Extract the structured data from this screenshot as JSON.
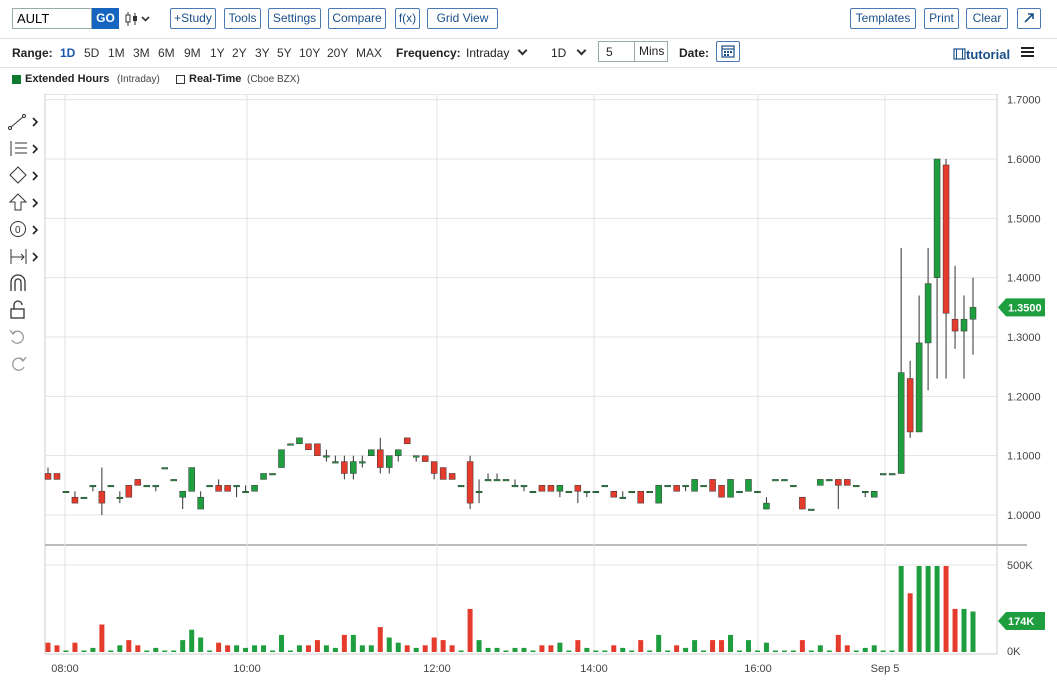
{
  "toolbar": {
    "symbol": "AULT",
    "go_label": "GO",
    "study_label": "+Study",
    "tools_label": "Tools",
    "settings_label": "Settings",
    "compare_label": "Compare",
    "fx_label": "f(x)",
    "grid_view_label": "Grid View",
    "templates_label": "Templates",
    "print_label": "Print",
    "clear_label": "Clear"
  },
  "range_bar": {
    "range_label": "Range:",
    "ranges": [
      "1D",
      "5D",
      "1M",
      "3M",
      "6M",
      "9M",
      "1Y",
      "2Y",
      "3Y",
      "5Y",
      "10Y",
      "20Y",
      "MAX"
    ],
    "active_range": "1D",
    "frequency_label": "Frequency:",
    "frequency_value": "Intraday",
    "period_value": "1D",
    "mins_value": "5",
    "mins_label": "Mins",
    "date_label": "Date:",
    "tutorial_label": "tutorial"
  },
  "legend": {
    "extended_label": "Extended Hours",
    "extended_sub": "(Intraday)",
    "realtime_label": "Real-Time",
    "realtime_sub": "(Cboe BZX)"
  },
  "colors": {
    "up": "#1e9e3e",
    "down": "#e53b2c",
    "accent": "#1565c0",
    "price_badge": "#1e9e3e"
  },
  "chart_data": {
    "type": "candlestick",
    "x_ticks": [
      "08:00",
      "10:00",
      "12:00",
      "14:00",
      "16:00",
      "Sep 5"
    ],
    "price_ticks": [
      "1.7000",
      "1.6000",
      "1.5000",
      "1.4000",
      "1.3000",
      "1.2000",
      "1.1000",
      "1.0000"
    ],
    "ylim": [
      0.97,
      1.7
    ],
    "volume_ticks": [
      "500K",
      "0K"
    ],
    "volume_max": 500000,
    "last_price": "1.3500",
    "last_volume": "174K",
    "candles": [
      {
        "o": 1.07,
        "h": 1.08,
        "l": 1.06,
        "c": 1.06
      },
      {
        "o": 1.07,
        "h": 1.07,
        "l": 1.06,
        "c": 1.06
      },
      {
        "o": 1.04,
        "h": 1.04,
        "l": 1.04,
        "c": 1.04
      },
      {
        "o": 1.03,
        "h": 1.04,
        "l": 1.02,
        "c": 1.02
      },
      {
        "o": 1.03,
        "h": 1.03,
        "l": 1.03,
        "c": 1.03
      },
      {
        "o": 1.05,
        "h": 1.05,
        "l": 1.04,
        "c": 1.05
      },
      {
        "o": 1.04,
        "h": 1.08,
        "l": 1.0,
        "c": 1.02
      },
      {
        "o": 1.05,
        "h": 1.05,
        "l": 1.05,
        "c": 1.05
      },
      {
        "o": 1.03,
        "h": 1.04,
        "l": 1.02,
        "c": 1.03
      },
      {
        "o": 1.05,
        "h": 1.05,
        "l": 1.03,
        "c": 1.03
      },
      {
        "o": 1.06,
        "h": 1.06,
        "l": 1.05,
        "c": 1.05
      },
      {
        "o": 1.05,
        "h": 1.05,
        "l": 1.05,
        "c": 1.05
      },
      {
        "o": 1.05,
        "h": 1.05,
        "l": 1.04,
        "c": 1.05
      },
      {
        "o": 1.08,
        "h": 1.08,
        "l": 1.08,
        "c": 1.08
      },
      {
        "o": 1.06,
        "h": 1.06,
        "l": 1.06,
        "c": 1.06
      },
      {
        "o": 1.03,
        "h": 1.04,
        "l": 1.01,
        "c": 1.04
      },
      {
        "o": 1.04,
        "h": 1.08,
        "l": 1.04,
        "c": 1.08
      },
      {
        "o": 1.01,
        "h": 1.04,
        "l": 1.01,
        "c": 1.03
      },
      {
        "o": 1.05,
        "h": 1.05,
        "l": 1.05,
        "c": 1.05
      },
      {
        "o": 1.05,
        "h": 1.06,
        "l": 1.04,
        "c": 1.04
      },
      {
        "o": 1.05,
        "h": 1.05,
        "l": 1.04,
        "c": 1.04
      },
      {
        "o": 1.05,
        "h": 1.05,
        "l": 1.03,
        "c": 1.05
      },
      {
        "o": 1.04,
        "h": 1.05,
        "l": 1.04,
        "c": 1.04
      },
      {
        "o": 1.04,
        "h": 1.05,
        "l": 1.04,
        "c": 1.05
      },
      {
        "o": 1.06,
        "h": 1.07,
        "l": 1.06,
        "c": 1.07
      },
      {
        "o": 1.07,
        "h": 1.07,
        "l": 1.07,
        "c": 1.07
      },
      {
        "o": 1.08,
        "h": 1.11,
        "l": 1.08,
        "c": 1.11
      },
      {
        "o": 1.12,
        "h": 1.12,
        "l": 1.12,
        "c": 1.12
      },
      {
        "o": 1.12,
        "h": 1.13,
        "l": 1.12,
        "c": 1.13
      },
      {
        "o": 1.12,
        "h": 1.12,
        "l": 1.11,
        "c": 1.11
      },
      {
        "o": 1.12,
        "h": 1.12,
        "l": 1.1,
        "c": 1.1
      },
      {
        "o": 1.1,
        "h": 1.11,
        "l": 1.09,
        "c": 1.1
      },
      {
        "o": 1.09,
        "h": 1.1,
        "l": 1.09,
        "c": 1.09
      },
      {
        "o": 1.09,
        "h": 1.1,
        "l": 1.06,
        "c": 1.07
      },
      {
        "o": 1.07,
        "h": 1.1,
        "l": 1.06,
        "c": 1.09
      },
      {
        "o": 1.09,
        "h": 1.1,
        "l": 1.08,
        "c": 1.09
      },
      {
        "o": 1.1,
        "h": 1.11,
        "l": 1.1,
        "c": 1.11
      },
      {
        "o": 1.11,
        "h": 1.13,
        "l": 1.07,
        "c": 1.08
      },
      {
        "o": 1.08,
        "h": 1.1,
        "l": 1.07,
        "c": 1.1
      },
      {
        "o": 1.1,
        "h": 1.11,
        "l": 1.09,
        "c": 1.11
      },
      {
        "o": 1.13,
        "h": 1.13,
        "l": 1.12,
        "c": 1.12
      },
      {
        "o": 1.1,
        "h": 1.1,
        "l": 1.09,
        "c": 1.1
      },
      {
        "o": 1.1,
        "h": 1.1,
        "l": 1.09,
        "c": 1.09
      },
      {
        "o": 1.09,
        "h": 1.09,
        "l": 1.06,
        "c": 1.07
      },
      {
        "o": 1.08,
        "h": 1.08,
        "l": 1.06,
        "c": 1.06
      },
      {
        "o": 1.07,
        "h": 1.07,
        "l": 1.06,
        "c": 1.06
      },
      {
        "o": 1.05,
        "h": 1.05,
        "l": 1.05,
        "c": 1.05
      },
      {
        "o": 1.09,
        "h": 1.1,
        "l": 1.01,
        "c": 1.02
      },
      {
        "o": 1.04,
        "h": 1.06,
        "l": 1.02,
        "c": 1.04
      },
      {
        "o": 1.06,
        "h": 1.07,
        "l": 1.06,
        "c": 1.06
      },
      {
        "o": 1.06,
        "h": 1.07,
        "l": 1.06,
        "c": 1.06
      },
      {
        "o": 1.06,
        "h": 1.06,
        "l": 1.06,
        "c": 1.06
      },
      {
        "o": 1.05,
        "h": 1.06,
        "l": 1.05,
        "c": 1.05
      },
      {
        "o": 1.05,
        "h": 1.05,
        "l": 1.04,
        "c": 1.05
      },
      {
        "o": 1.04,
        "h": 1.04,
        "l": 1.04,
        "c": 1.04
      },
      {
        "o": 1.05,
        "h": 1.05,
        "l": 1.04,
        "c": 1.04
      },
      {
        "o": 1.05,
        "h": 1.05,
        "l": 1.04,
        "c": 1.04
      },
      {
        "o": 1.04,
        "h": 1.05,
        "l": 1.03,
        "c": 1.05
      },
      {
        "o": 1.04,
        "h": 1.04,
        "l": 1.04,
        "c": 1.04
      },
      {
        "o": 1.05,
        "h": 1.05,
        "l": 1.02,
        "c": 1.04
      },
      {
        "o": 1.04,
        "h": 1.04,
        "l": 1.03,
        "c": 1.04
      },
      {
        "o": 1.04,
        "h": 1.04,
        "l": 1.04,
        "c": 1.04
      },
      {
        "o": 1.05,
        "h": 1.05,
        "l": 1.05,
        "c": 1.05
      },
      {
        "o": 1.04,
        "h": 1.04,
        "l": 1.03,
        "c": 1.03
      },
      {
        "o": 1.03,
        "h": 1.04,
        "l": 1.03,
        "c": 1.03
      },
      {
        "o": 1.04,
        "h": 1.04,
        "l": 1.04,
        "c": 1.04
      },
      {
        "o": 1.04,
        "h": 1.04,
        "l": 1.02,
        "c": 1.02
      },
      {
        "o": 1.04,
        "h": 1.04,
        "l": 1.04,
        "c": 1.04
      },
      {
        "o": 1.02,
        "h": 1.05,
        "l": 1.02,
        "c": 1.05
      },
      {
        "o": 1.05,
        "h": 1.05,
        "l": 1.05,
        "c": 1.05
      },
      {
        "o": 1.05,
        "h": 1.05,
        "l": 1.04,
        "c": 1.04
      },
      {
        "o": 1.05,
        "h": 1.05,
        "l": 1.04,
        "c": 1.05
      },
      {
        "o": 1.04,
        "h": 1.06,
        "l": 1.04,
        "c": 1.06
      },
      {
        "o": 1.05,
        "h": 1.05,
        "l": 1.05,
        "c": 1.05
      },
      {
        "o": 1.06,
        "h": 1.06,
        "l": 1.04,
        "c": 1.04
      },
      {
        "o": 1.05,
        "h": 1.05,
        "l": 1.03,
        "c": 1.03
      },
      {
        "o": 1.03,
        "h": 1.06,
        "l": 1.03,
        "c": 1.06
      },
      {
        "o": 1.04,
        "h": 1.04,
        "l": 1.04,
        "c": 1.04
      },
      {
        "o": 1.04,
        "h": 1.06,
        "l": 1.04,
        "c": 1.06
      },
      {
        "o": 1.04,
        "h": 1.04,
        "l": 1.04,
        "c": 1.04
      },
      {
        "o": 1.01,
        "h": 1.03,
        "l": 1.01,
        "c": 1.02
      },
      {
        "o": 1.06,
        "h": 1.06,
        "l": 1.06,
        "c": 1.06
      },
      {
        "o": 1.06,
        "h": 1.06,
        "l": 1.06,
        "c": 1.06
      },
      {
        "o": 1.05,
        "h": 1.05,
        "l": 1.05,
        "c": 1.05
      },
      {
        "o": 1.03,
        "h": 1.03,
        "l": 1.01,
        "c": 1.01
      },
      {
        "o": 1.01,
        "h": 1.01,
        "l": 1.01,
        "c": 1.01
      },
      {
        "o": 1.05,
        "h": 1.06,
        "l": 1.05,
        "c": 1.06
      },
      {
        "o": 1.06,
        "h": 1.06,
        "l": 1.06,
        "c": 1.06
      },
      {
        "o": 1.06,
        "h": 1.06,
        "l": 1.01,
        "c": 1.05
      },
      {
        "o": 1.06,
        "h": 1.06,
        "l": 1.05,
        "c": 1.05
      },
      {
        "o": 1.05,
        "h": 1.05,
        "l": 1.05,
        "c": 1.05
      },
      {
        "o": 1.04,
        "h": 1.04,
        "l": 1.03,
        "c": 1.04
      },
      {
        "o": 1.03,
        "h": 1.04,
        "l": 1.03,
        "c": 1.04
      },
      {
        "o": 1.07,
        "h": 1.07,
        "l": 1.07,
        "c": 1.07
      },
      {
        "o": 1.07,
        "h": 1.07,
        "l": 1.07,
        "c": 1.07
      },
      {
        "o": 1.07,
        "h": 1.45,
        "l": 1.07,
        "c": 1.24
      },
      {
        "o": 1.23,
        "h": 1.26,
        "l": 1.13,
        "c": 1.14
      },
      {
        "o": 1.14,
        "h": 1.37,
        "l": 1.14,
        "c": 1.29
      },
      {
        "o": 1.29,
        "h": 1.45,
        "l": 1.21,
        "c": 1.39
      },
      {
        "o": 1.4,
        "h": 1.6,
        "l": 1.23,
        "c": 1.6
      },
      {
        "o": 1.59,
        "h": 1.6,
        "l": 1.23,
        "c": 1.34
      },
      {
        "o": 1.33,
        "h": 1.42,
        "l": 1.28,
        "c": 1.31
      },
      {
        "o": 1.31,
        "h": 1.37,
        "l": 1.23,
        "c": 1.33
      },
      {
        "o": 1.33,
        "h": 1.4,
        "l": 1.27,
        "c": 1.35
      }
    ]
  }
}
